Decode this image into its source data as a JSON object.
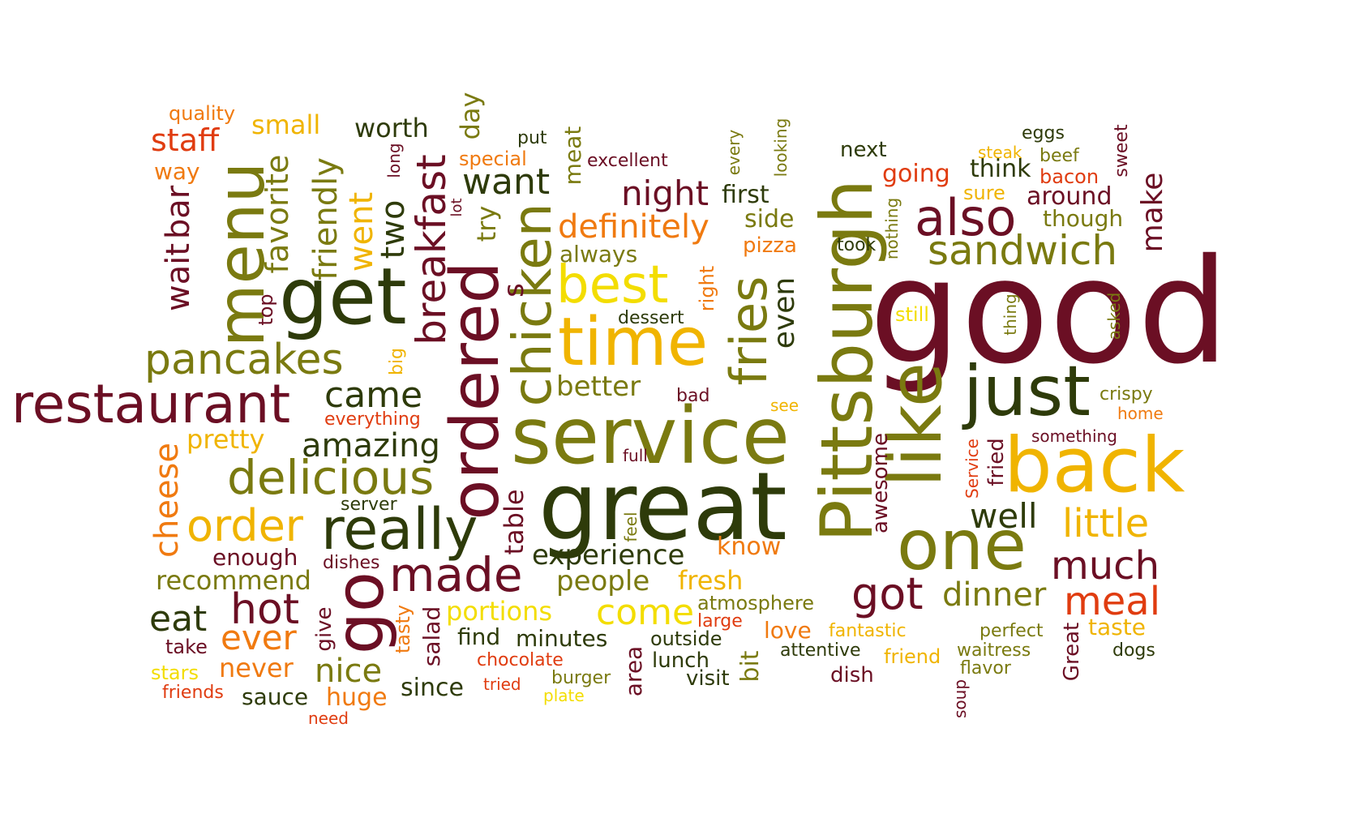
{
  "palette": {
    "maroon": "#6b0f24",
    "dark_green": "#2e3b0a",
    "olive": "#7a7a10",
    "gold": "#f0b400",
    "yellow": "#f3dd00",
    "orange": "#f07a10",
    "red_orange": "#e03c10"
  },
  "words": [
    {
      "text": "good",
      "color": "maroon"
    },
    {
      "text": "great",
      "color": "dark_green"
    },
    {
      "text": "service",
      "color": "olive"
    },
    {
      "text": "Pittsburgh",
      "color": "olive"
    },
    {
      "text": "like",
      "color": "olive"
    },
    {
      "text": "back",
      "color": "gold"
    },
    {
      "text": "time",
      "color": "gold"
    },
    {
      "text": "ordered",
      "color": "maroon"
    },
    {
      "text": "get",
      "color": "dark_green"
    },
    {
      "text": "restaurant",
      "color": "maroon"
    },
    {
      "text": "just",
      "color": "dark_green"
    },
    {
      "text": "one",
      "color": "olive"
    },
    {
      "text": "really",
      "color": "dark_green"
    },
    {
      "text": "go",
      "color": "maroon"
    },
    {
      "text": "menu",
      "color": "olive"
    },
    {
      "text": "chicken",
      "color": "olive"
    },
    {
      "text": "fries",
      "color": "olive"
    },
    {
      "text": "best",
      "color": "yellow"
    },
    {
      "text": "breakfast",
      "color": "maroon"
    },
    {
      "text": "delicious",
      "color": "olive"
    },
    {
      "text": "pancakes",
      "color": "olive"
    },
    {
      "text": "also",
      "color": "maroon"
    },
    {
      "text": "sandwich",
      "color": "olive"
    },
    {
      "text": "made",
      "color": "maroon"
    },
    {
      "text": "got",
      "color": "maroon"
    },
    {
      "text": "order",
      "color": "gold"
    },
    {
      "text": "hot",
      "color": "maroon"
    },
    {
      "text": "much",
      "color": "maroon"
    },
    {
      "text": "well",
      "color": "dark_green"
    },
    {
      "text": "little",
      "color": "gold"
    },
    {
      "text": "meal",
      "color": "red_orange"
    },
    {
      "text": "come",
      "color": "yellow"
    },
    {
      "text": "definitely",
      "color": "orange"
    },
    {
      "text": "night",
      "color": "maroon"
    },
    {
      "text": "want",
      "color": "dark_green"
    },
    {
      "text": "came",
      "color": "dark_green"
    },
    {
      "text": "amazing",
      "color": "dark_green"
    },
    {
      "text": "two",
      "color": "dark_green"
    },
    {
      "text": "went",
      "color": "gold"
    },
    {
      "text": "friendly",
      "color": "olive"
    },
    {
      "text": "favorite",
      "color": "olive"
    },
    {
      "text": "bar",
      "color": "maroon"
    },
    {
      "text": "wait",
      "color": "maroon"
    },
    {
      "text": "cheese",
      "color": "orange"
    },
    {
      "text": "eat",
      "color": "dark_green"
    },
    {
      "text": "ever",
      "color": "orange"
    },
    {
      "text": "nice",
      "color": "olive"
    },
    {
      "text": "dinner",
      "color": "olive"
    },
    {
      "text": "experience",
      "color": "dark_green"
    },
    {
      "text": "even",
      "color": "dark_green"
    },
    {
      "text": "people",
      "color": "olive"
    },
    {
      "text": "better",
      "color": "olive"
    },
    {
      "text": "pretty",
      "color": "gold"
    },
    {
      "text": "recommend",
      "color": "olive"
    },
    {
      "text": "portions",
      "color": "yellow"
    },
    {
      "text": "fresh",
      "color": "gold"
    },
    {
      "text": "staff",
      "color": "red_orange"
    },
    {
      "text": "small",
      "color": "gold"
    },
    {
      "text": "worth",
      "color": "dark_green"
    },
    {
      "text": "day",
      "color": "olive"
    },
    {
      "text": "try",
      "color": "olive"
    },
    {
      "text": "table",
      "color": "maroon"
    },
    {
      "text": "make",
      "color": "maroon"
    },
    {
      "text": "around",
      "color": "maroon"
    },
    {
      "text": "though",
      "color": "olive"
    },
    {
      "text": "think",
      "color": "dark_green"
    },
    {
      "text": "going",
      "color": "red_orange"
    },
    {
      "text": "first",
      "color": "dark_green"
    },
    {
      "text": "side",
      "color": "olive"
    },
    {
      "text": "pizza",
      "color": "orange"
    },
    {
      "text": "always",
      "color": "olive"
    },
    {
      "text": "awesome",
      "color": "maroon"
    },
    {
      "text": "fried",
      "color": "maroon"
    },
    {
      "text": "know",
      "color": "orange"
    },
    {
      "text": "never",
      "color": "orange"
    },
    {
      "text": "huge",
      "color": "orange"
    },
    {
      "text": "sauce",
      "color": "dark_green"
    },
    {
      "text": "since",
      "color": "dark_green"
    },
    {
      "text": "salad",
      "color": "maroon"
    },
    {
      "text": "find",
      "color": "dark_green"
    },
    {
      "text": "minutes",
      "color": "dark_green"
    },
    {
      "text": "area",
      "color": "maroon"
    },
    {
      "text": "lunch",
      "color": "dark_green"
    },
    {
      "text": "love",
      "color": "orange"
    },
    {
      "text": "taste",
      "color": "gold"
    },
    {
      "text": "bit",
      "color": "olive"
    },
    {
      "text": "atmosphere",
      "color": "olive"
    },
    {
      "text": "enough",
      "color": "maroon"
    },
    {
      "text": "give",
      "color": "maroon"
    },
    {
      "text": "tasty",
      "color": "orange"
    },
    {
      "text": "way",
      "color": "orange"
    },
    {
      "text": "quality",
      "color": "orange"
    },
    {
      "text": "top",
      "color": "maroon"
    },
    {
      "text": "big",
      "color": "gold"
    },
    {
      "text": "everything",
      "color": "red_orange"
    },
    {
      "text": "server",
      "color": "dark_green"
    },
    {
      "text": "dishes",
      "color": "maroon"
    },
    {
      "text": "take",
      "color": "maroon"
    },
    {
      "text": "stars",
      "color": "yellow"
    },
    {
      "text": "friends",
      "color": "red_orange"
    },
    {
      "text": "need",
      "color": "red_orange"
    },
    {
      "text": "chocolate",
      "color": "red_orange"
    },
    {
      "text": "tried",
      "color": "red_orange"
    },
    {
      "text": "burger",
      "color": "olive"
    },
    {
      "text": "plate",
      "color": "yellow"
    },
    {
      "text": "visit",
      "color": "dark_green"
    },
    {
      "text": "outside",
      "color": "dark_green"
    },
    {
      "text": "large",
      "color": "red_orange"
    },
    {
      "text": "fantastic",
      "color": "gold"
    },
    {
      "text": "attentive",
      "color": "dark_green"
    },
    {
      "text": "dish",
      "color": "maroon"
    },
    {
      "text": "friend",
      "color": "gold"
    },
    {
      "text": "perfect",
      "color": "olive"
    },
    {
      "text": "waitress",
      "color": "olive"
    },
    {
      "text": "flavor",
      "color": "olive"
    },
    {
      "text": "soup",
      "color": "maroon"
    },
    {
      "text": "Great",
      "color": "maroon"
    },
    {
      "text": "dogs",
      "color": "dark_green"
    },
    {
      "text": "special",
      "color": "orange"
    },
    {
      "text": "put",
      "color": "dark_green"
    },
    {
      "text": "long",
      "color": "maroon"
    },
    {
      "text": "lot",
      "color": "maroon"
    },
    {
      "text": "s",
      "color": "maroon"
    },
    {
      "text": "meat",
      "color": "olive"
    },
    {
      "text": "excellent",
      "color": "maroon"
    },
    {
      "text": "every",
      "color": "olive"
    },
    {
      "text": "looking",
      "color": "olive"
    },
    {
      "text": "next",
      "color": "dark_green"
    },
    {
      "text": "took",
      "color": "dark_green"
    },
    {
      "text": "nothing",
      "color": "olive"
    },
    {
      "text": "eggs",
      "color": "dark_green"
    },
    {
      "text": "steak",
      "color": "gold"
    },
    {
      "text": "beef",
      "color": "olive"
    },
    {
      "text": "bacon",
      "color": "red_orange"
    },
    {
      "text": "sweet",
      "color": "maroon"
    },
    {
      "text": "sure",
      "color": "gold"
    },
    {
      "text": "still",
      "color": "yellow"
    },
    {
      "text": "thing",
      "color": "olive"
    },
    {
      "text": "asked",
      "color": "olive"
    },
    {
      "text": "crispy",
      "color": "olive"
    },
    {
      "text": "home",
      "color": "orange"
    },
    {
      "text": "something",
      "color": "maroon"
    },
    {
      "text": "Service",
      "color": "red_orange"
    },
    {
      "text": "right",
      "color": "orange"
    },
    {
      "text": "dessert",
      "color": "dark_green"
    },
    {
      "text": "bad",
      "color": "maroon"
    },
    {
      "text": "see",
      "color": "gold"
    },
    {
      "text": "full",
      "color": "maroon"
    },
    {
      "text": "feel",
      "color": "olive"
    }
  ]
}
